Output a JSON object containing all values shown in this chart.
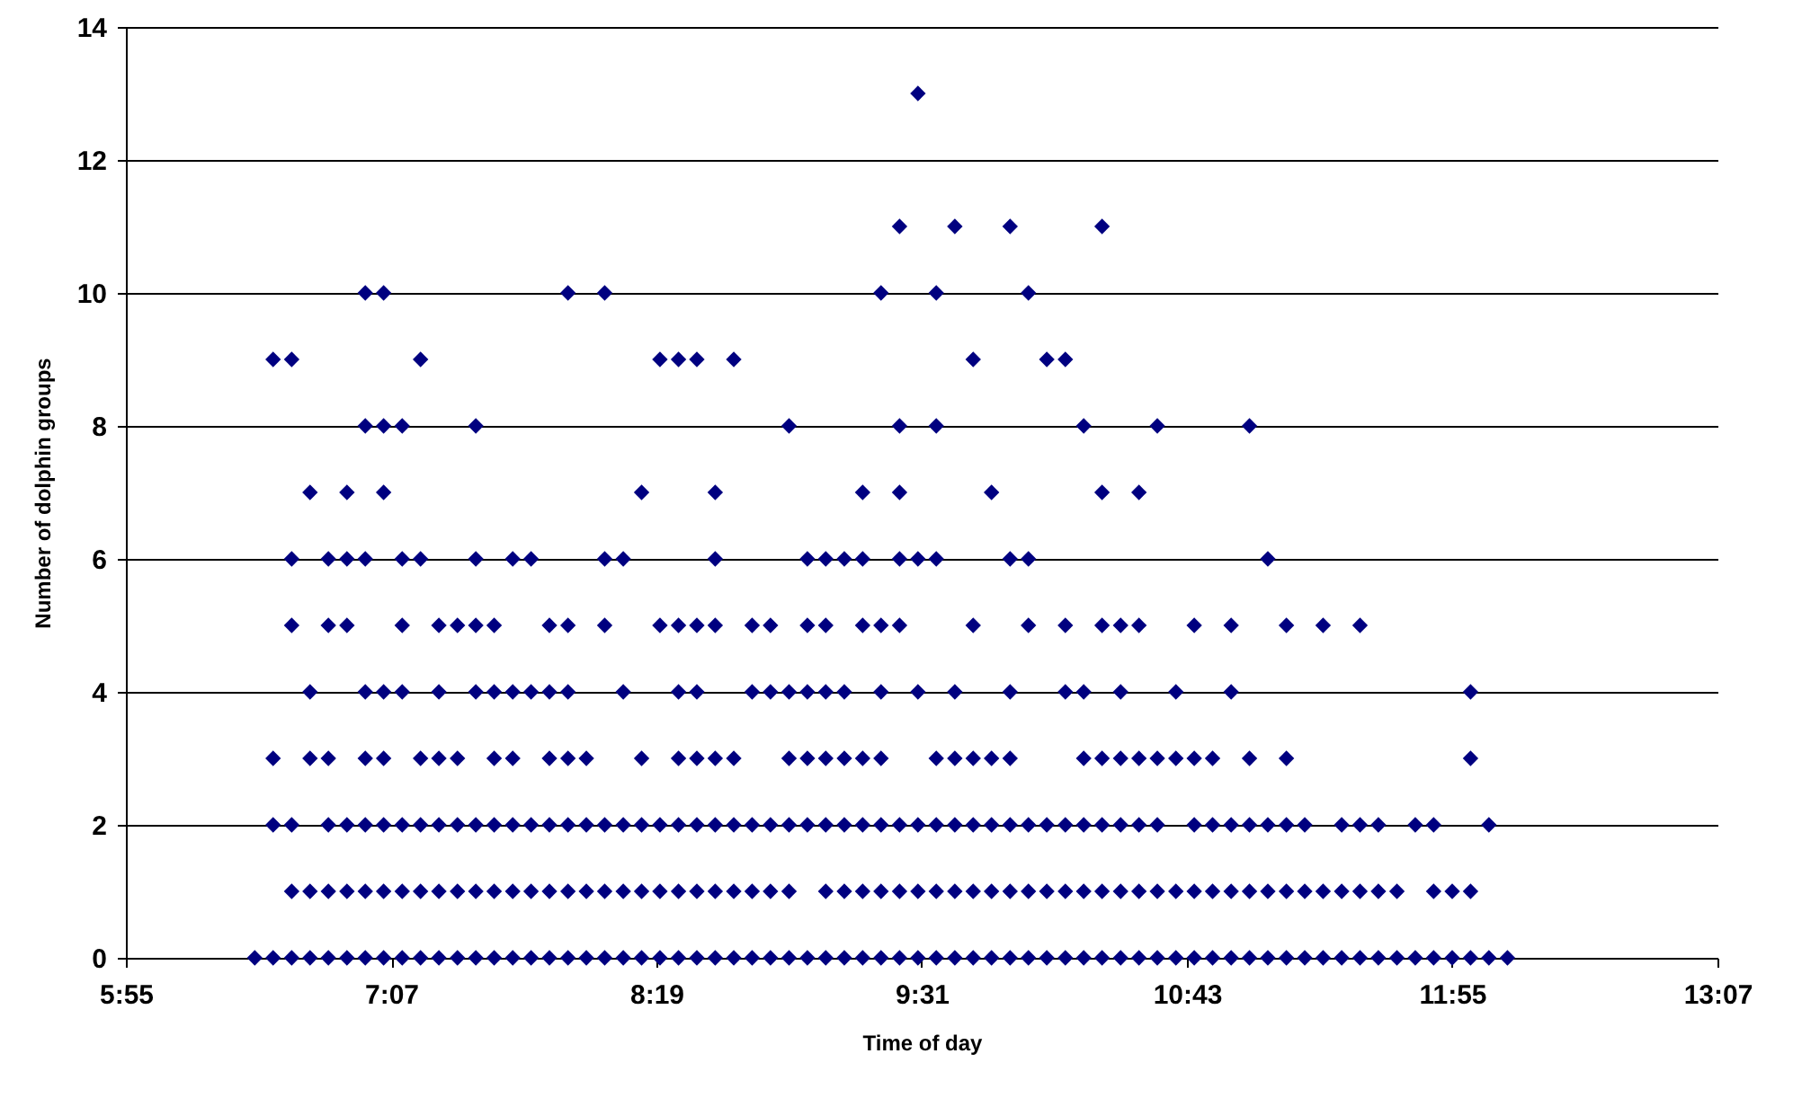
{
  "chart_data": {
    "type": "scatter",
    "xlabel": "Time of day",
    "ylabel": "Number of dolphin groups",
    "xlim": [
      5.917,
      13.117
    ],
    "xticks": [
      {
        "value": 5.917,
        "label": "5:55"
      },
      {
        "value": 7.117,
        "label": "7:07"
      },
      {
        "value": 8.317,
        "label": "8:19"
      },
      {
        "value": 9.517,
        "label": "9:31"
      },
      {
        "value": 10.717,
        "label": "10:43"
      },
      {
        "value": 11.917,
        "label": "11:55"
      },
      {
        "value": 13.117,
        "label": "13:07"
      }
    ],
    "ylim": [
      0,
      14
    ],
    "yticks": [
      0,
      2,
      4,
      6,
      8,
      10,
      12,
      14
    ],
    "grid": "y",
    "marker": "diamond",
    "series": [
      {
        "color": "#000080",
        "x": [
          6.5,
          6.583,
          6.667,
          6.75,
          6.833,
          6.917,
          7.0,
          7.083,
          7.167,
          7.25,
          7.333,
          7.417,
          7.5,
          7.583,
          7.667,
          7.75,
          7.833,
          7.917,
          8.0,
          8.083,
          8.167,
          8.25,
          8.333,
          8.417,
          8.5,
          8.583,
          8.667,
          8.75,
          8.833,
          8.917,
          9.0,
          9.083,
          9.167,
          9.25,
          9.333,
          9.417,
          9.5,
          9.583,
          9.667,
          9.75,
          9.833,
          9.917,
          10.0,
          10.083,
          10.167,
          10.25,
          10.333,
          10.417,
          10.5,
          10.583,
          10.667,
          10.75,
          10.833,
          10.917,
          11.0,
          11.083,
          11.167,
          11.25,
          11.333,
          11.417,
          11.5,
          11.583,
          11.667,
          11.75,
          11.833,
          11.917,
          12.0,
          12.083,
          12.167
        ],
        "values": [
          0,
          0,
          0,
          0,
          0,
          0,
          0,
          0,
          0,
          0,
          0,
          0,
          0,
          0,
          0,
          0,
          0,
          0,
          0,
          0,
          0,
          0,
          0,
          0,
          0,
          0,
          0,
          0,
          0,
          0,
          0,
          0,
          0,
          0,
          0,
          0,
          0,
          0,
          0,
          0,
          0,
          0,
          0,
          0,
          0,
          0,
          0,
          0,
          0,
          0,
          0,
          0,
          0,
          0,
          0,
          0,
          0,
          0,
          0,
          0,
          0,
          0,
          0,
          0,
          0,
          0,
          0,
          0,
          0
        ]
      },
      {
        "color": "#000080",
        "x": [
          6.667,
          6.75,
          6.833,
          6.917,
          7.0,
          7.083,
          7.167,
          7.25,
          7.333,
          7.417,
          7.5,
          7.583,
          7.667,
          7.75,
          7.833,
          7.917,
          8.0,
          8.083,
          8.167,
          8.25,
          8.333,
          8.417,
          8.5,
          8.583,
          8.667,
          8.75,
          8.833,
          8.917,
          9.083,
          9.167,
          9.25,
          9.333,
          9.417,
          9.5,
          9.583,
          9.667,
          9.75,
          9.833,
          9.917,
          10.0,
          10.083,
          10.167,
          10.25,
          10.333,
          10.417,
          10.5,
          10.583,
          10.667,
          10.75,
          10.833,
          10.917,
          11.0,
          11.083,
          11.167,
          11.25,
          11.333,
          11.417,
          11.5,
          11.583,
          11.667,
          11.833,
          11.917,
          12.0
        ],
        "values": [
          1,
          1,
          1,
          1,
          1,
          1,
          1,
          1,
          1,
          1,
          1,
          1,
          1,
          1,
          1,
          1,
          1,
          1,
          1,
          1,
          1,
          1,
          1,
          1,
          1,
          1,
          1,
          1,
          1,
          1,
          1,
          1,
          1,
          1,
          1,
          1,
          1,
          1,
          1,
          1,
          1,
          1,
          1,
          1,
          1,
          1,
          1,
          1,
          1,
          1,
          1,
          1,
          1,
          1,
          1,
          1,
          1,
          1,
          1,
          1,
          1,
          1,
          1
        ]
      },
      {
        "color": "#000080",
        "x": [
          6.583,
          6.667,
          6.833,
          6.917,
          7.0,
          7.083,
          7.167,
          7.25,
          7.333,
          7.417,
          7.5,
          7.583,
          7.667,
          7.75,
          7.833,
          7.917,
          8.0,
          8.083,
          8.167,
          8.25,
          8.333,
          8.417,
          8.5,
          8.583,
          8.667,
          8.75,
          8.833,
          8.917,
          9.0,
          9.083,
          9.167,
          9.25,
          9.333,
          9.417,
          9.5,
          9.583,
          9.667,
          9.75,
          9.833,
          9.917,
          10.0,
          10.083,
          10.167,
          10.25,
          10.333,
          10.417,
          10.5,
          10.583,
          10.75,
          10.833,
          10.917,
          11.0,
          11.083,
          11.167,
          11.25,
          11.417,
          11.5,
          11.583,
          11.75,
          11.833,
          12.083
        ],
        "values": [
          2,
          2,
          2,
          2,
          2,
          2,
          2,
          2,
          2,
          2,
          2,
          2,
          2,
          2,
          2,
          2,
          2,
          2,
          2,
          2,
          2,
          2,
          2,
          2,
          2,
          2,
          2,
          2,
          2,
          2,
          2,
          2,
          2,
          2,
          2,
          2,
          2,
          2,
          2,
          2,
          2,
          2,
          2,
          2,
          2,
          2,
          2,
          2,
          2,
          2,
          2,
          2,
          2,
          2,
          2,
          2,
          2,
          2,
          2,
          2,
          2
        ]
      },
      {
        "color": "#000080",
        "x": [
          6.583,
          6.75,
          6.833,
          7.0,
          7.083,
          7.25,
          7.333,
          7.417,
          7.583,
          7.667,
          7.833,
          7.917,
          8.0,
          8.25,
          8.417,
          8.5,
          8.583,
          8.667,
          8.917,
          9.0,
          9.083,
          9.167,
          9.25,
          9.333,
          9.583,
          9.667,
          9.75,
          9.833,
          9.917,
          10.25,
          10.333,
          10.417,
          10.5,
          10.583,
          10.667,
          10.75,
          10.833,
          11.0,
          11.167,
          12.0
        ],
        "values": [
          3,
          3,
          3,
          3,
          3,
          3,
          3,
          3,
          3,
          3,
          3,
          3,
          3,
          3,
          3,
          3,
          3,
          3,
          3,
          3,
          3,
          3,
          3,
          3,
          3,
          3,
          3,
          3,
          3,
          3,
          3,
          3,
          3,
          3,
          3,
          3,
          3,
          3,
          3,
          3
        ]
      },
      {
        "color": "#000080",
        "x": [
          6.75,
          7.0,
          7.083,
          7.167,
          7.333,
          7.5,
          7.583,
          7.667,
          7.75,
          7.833,
          7.917,
          8.167,
          8.417,
          8.5,
          8.75,
          8.833,
          8.917,
          9.0,
          9.083,
          9.167,
          9.333,
          9.5,
          9.667,
          9.917,
          10.167,
          10.25,
          10.417,
          10.667,
          10.917,
          12.0
        ],
        "values": [
          4,
          4,
          4,
          4,
          4,
          4,
          4,
          4,
          4,
          4,
          4,
          4,
          4,
          4,
          4,
          4,
          4,
          4,
          4,
          4,
          4,
          4,
          4,
          4,
          4,
          4,
          4,
          4,
          4,
          4
        ]
      },
      {
        "color": "#000080",
        "x": [
          6.667,
          6.833,
          6.917,
          7.167,
          7.333,
          7.417,
          7.5,
          7.583,
          7.833,
          7.917,
          8.083,
          8.333,
          8.417,
          8.5,
          8.583,
          8.75,
          8.833,
          9.0,
          9.083,
          9.25,
          9.333,
          9.417,
          9.75,
          10.0,
          10.167,
          10.333,
          10.417,
          10.5,
          10.75,
          10.917,
          11.167,
          11.333,
          11.5
        ],
        "values": [
          5,
          5,
          5,
          5,
          5,
          5,
          5,
          5,
          5,
          5,
          5,
          5,
          5,
          5,
          5,
          5,
          5,
          5,
          5,
          5,
          5,
          5,
          5,
          5,
          5,
          5,
          5,
          5,
          5,
          5,
          5,
          5,
          5
        ]
      },
      {
        "color": "#000080",
        "x": [
          6.667,
          6.833,
          6.917,
          7.0,
          7.167,
          7.25,
          7.5,
          7.667,
          7.75,
          8.083,
          8.167,
          8.583,
          9.0,
          9.083,
          9.167,
          9.25,
          9.417,
          9.5,
          9.583,
          9.917,
          10.0,
          11.083
        ],
        "values": [
          6,
          6,
          6,
          6,
          6,
          6,
          6,
          6,
          6,
          6,
          6,
          6,
          6,
          6,
          6,
          6,
          6,
          6,
          6,
          6,
          6,
          6
        ]
      },
      {
        "color": "#000080",
        "x": [
          6.75,
          6.917,
          7.083,
          8.25,
          8.583,
          9.25,
          9.417,
          9.833,
          10.333,
          10.5
        ],
        "values": [
          7,
          7,
          7,
          7,
          7,
          7,
          7,
          7,
          7,
          7
        ]
      },
      {
        "color": "#000080",
        "x": [
          7.0,
          7.083,
          7.167,
          7.5,
          8.917,
          9.417,
          9.583,
          10.25,
          10.583,
          11.0
        ],
        "values": [
          8,
          8,
          8,
          8,
          8,
          8,
          8,
          8,
          8,
          8
        ]
      },
      {
        "color": "#000080",
        "x": [
          6.583,
          6.667,
          7.25,
          8.333,
          8.417,
          8.5,
          8.667,
          9.75,
          10.083,
          10.167
        ],
        "values": [
          9,
          9,
          9,
          9,
          9,
          9,
          9,
          9,
          9,
          9
        ]
      },
      {
        "color": "#000080",
        "x": [
          7.0,
          7.083,
          7.917,
          8.083,
          9.333,
          9.583,
          10.0
        ],
        "values": [
          10,
          10,
          10,
          10,
          10,
          10,
          10
        ]
      },
      {
        "color": "#000080",
        "x": [
          9.417,
          9.667,
          9.917,
          10.333
        ],
        "values": [
          11,
          11,
          11,
          11
        ]
      },
      {
        "color": "#000080",
        "x": [
          9.5
        ],
        "values": [
          13
        ]
      }
    ]
  }
}
